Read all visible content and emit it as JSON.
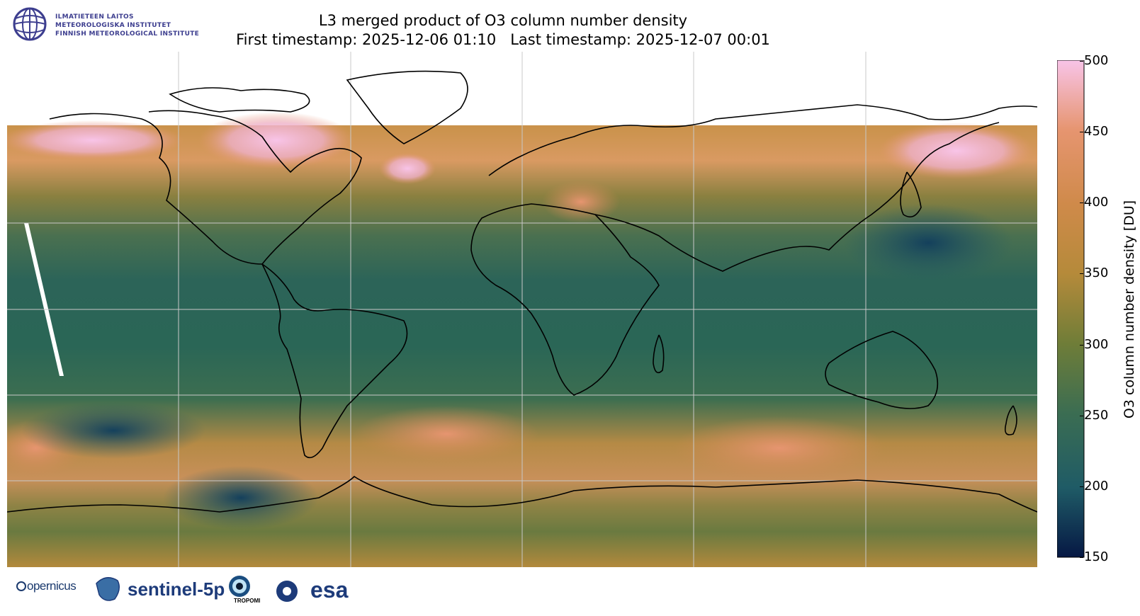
{
  "header": {
    "institute_lines": [
      "ILMATIETEEN LAITOS",
      "METEOROLOGISKA INSTITUTET",
      "FINNISH METEOROLOGICAL INSTITUTE"
    ],
    "title_line1": "L3 merged product of O3 column number density",
    "title_line2": "First timestamp: 2025-12-06 01:10   Last timestamp: 2025-12-07 00:01"
  },
  "colorbar": {
    "label": "O3 column number density [DU]",
    "min": 150,
    "max": 500,
    "ticks": [
      "500",
      "450",
      "400",
      "350",
      "300",
      "250",
      "200",
      "150"
    ],
    "colors": [
      "#f8c4e8",
      "#e69570",
      "#b58a3a",
      "#6f7d38",
      "#3b6d52",
      "#1f5b66",
      "#0e3357",
      "#061844"
    ]
  },
  "map": {
    "projection": "PlateCarree",
    "gridlines": true,
    "lon_gridlines": [
      -180,
      -120,
      -60,
      0,
      60,
      120,
      180
    ],
    "lat_gridlines": [
      -90,
      -60,
      -30,
      0,
      30,
      60,
      90
    ]
  },
  "footer": {
    "copernicus": "opernicus",
    "sentinel": "sentinel-5p",
    "tropomi": "TROPOMI",
    "esa": "esa"
  }
}
